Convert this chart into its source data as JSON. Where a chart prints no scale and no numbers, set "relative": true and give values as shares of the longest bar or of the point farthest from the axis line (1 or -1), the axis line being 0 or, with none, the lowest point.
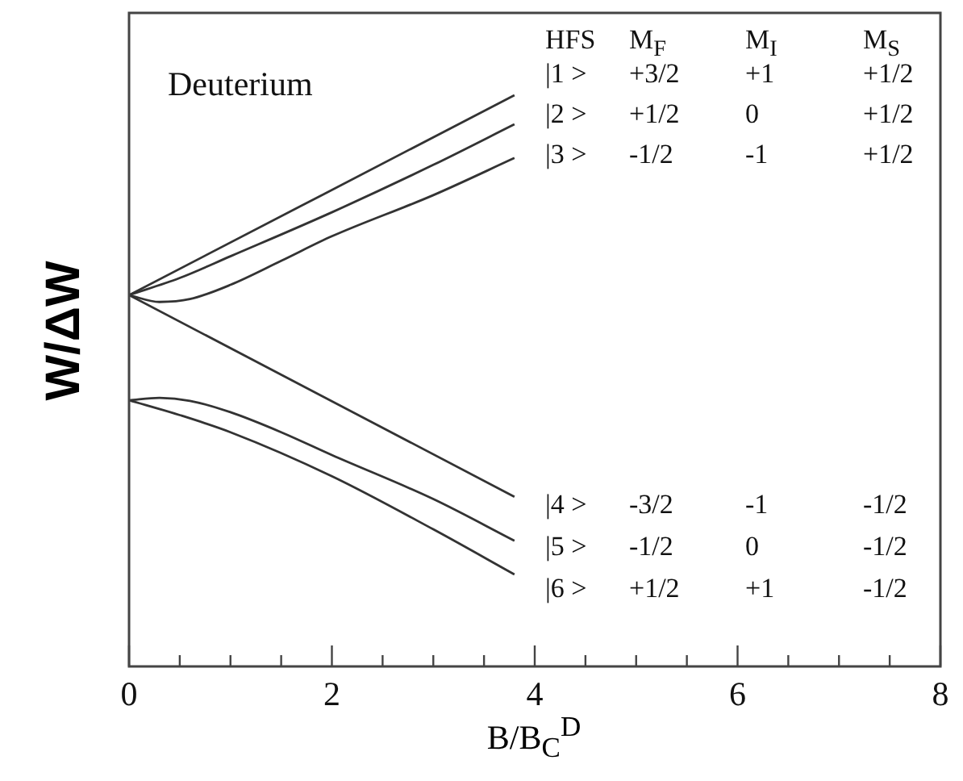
{
  "chart_data": {
    "type": "line",
    "relative": true,
    "xlabel": "B/B$_{C}$$^{D}$",
    "ylabel": "W/ΔW",
    "xlim": [
      0,
      8
    ],
    "xticks": [
      0,
      {
        "value": 0.5,
        "label": null
      },
      {
        "value": 1,
        "label": null
      },
      {
        "value": 1.5,
        "label": null
      },
      2,
      {
        "value": 2.5,
        "label": null
      },
      {
        "value": 3,
        "label": null
      },
      {
        "value": 3.5,
        "label": null
      },
      4,
      {
        "value": 4.5,
        "label": null
      },
      {
        "value": 5,
        "label": null
      },
      {
        "value": 5.5,
        "label": null
      },
      6,
      {
        "value": 6.5,
        "label": null
      },
      {
        "value": 7,
        "label": null
      },
      {
        "value": 7.5,
        "label": null
      },
      8
    ],
    "grid": false,
    "legend": false,
    "marker": "none",
    "line_style": "solid",
    "series": [
      {
        "name": "|1 >",
        "color": "#333333",
        "x": [
          0,
          3.8
        ],
        "values": [
          0.65,
          1.0
        ]
      },
      {
        "name": "|2 >",
        "color": "#333333",
        "x": [
          0,
          0.5,
          1,
          2,
          3,
          3.8
        ],
        "values": [
          0.65,
          0.68,
          0.718,
          0.795,
          0.878,
          0.949
        ]
      },
      {
        "name": "|3 >",
        "color": "#333333",
        "x": [
          0,
          0.3,
          0.6,
          1,
          1.5,
          2,
          3,
          3.8
        ],
        "values": [
          0.65,
          0.638,
          0.643,
          0.668,
          0.71,
          0.753,
          0.825,
          0.89
        ]
      },
      {
        "name": "|4 >",
        "color": "#333333",
        "x": [
          0,
          3.8
        ],
        "values": [
          0.65,
          0.297
        ]
      },
      {
        "name": "|5 >",
        "color": "#333333",
        "x": [
          0,
          0.3,
          0.6,
          1,
          1.5,
          2,
          3,
          3.8
        ],
        "values": [
          0.466,
          0.47,
          0.465,
          0.445,
          0.41,
          0.37,
          0.293,
          0.22
        ]
      },
      {
        "name": "|6 >",
        "color": "#333333",
        "x": [
          0,
          0.5,
          1,
          2,
          3,
          3.8
        ],
        "values": [
          0.466,
          0.44,
          0.41,
          0.333,
          0.24,
          0.161
        ]
      }
    ],
    "annotations": [
      "Deuterium",
      "HFS",
      "M$_{F}$",
      "M$_{I}$",
      "M$_{S}$",
      "+3/2",
      "+1",
      "+1/2",
      "+1/2",
      "0",
      "+1/2",
      "-1/2",
      "-1",
      "+1/2",
      "-3/2",
      "-1",
      "-1/2",
      "-1/2",
      "0",
      "-1/2",
      "+1/2",
      "+1",
      "-1/2"
    ]
  }
}
